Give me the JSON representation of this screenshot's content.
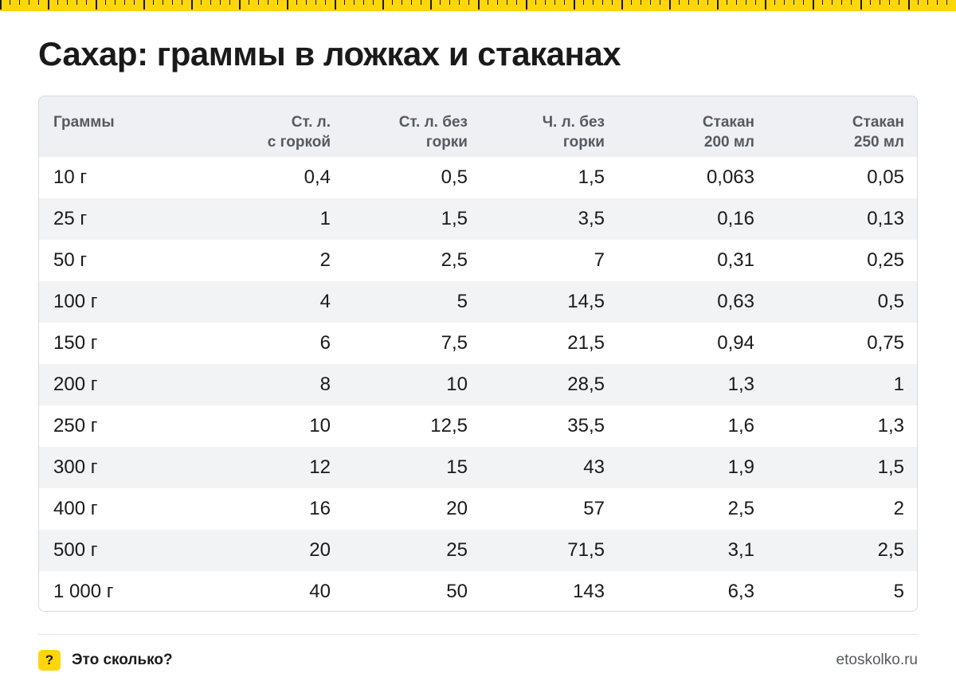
{
  "title": "Сахар: граммы в ложках и стаканах",
  "table": {
    "headers": [
      [
        "Граммы"
      ],
      [
        "Ст. л.",
        "с горкой"
      ],
      [
        "Ст. л. без",
        "горки"
      ],
      [
        "Ч. л. без",
        "горки"
      ],
      [
        "Стакан",
        "200 мл"
      ],
      [
        "Стакан",
        "250 мл"
      ]
    ],
    "rows": [
      [
        "10 г",
        "0,4",
        "0,5",
        "1,5",
        "0,063",
        "0,05"
      ],
      [
        "25 г",
        "1",
        "1,5",
        "3,5",
        "0,16",
        "0,13"
      ],
      [
        "50 г",
        "2",
        "2,5",
        "7",
        "0,31",
        "0,25"
      ],
      [
        "100 г",
        "4",
        "5",
        "14,5",
        "0,63",
        "0,5"
      ],
      [
        "150 г",
        "6",
        "7,5",
        "21,5",
        "0,94",
        "0,75"
      ],
      [
        "200 г",
        "8",
        "10",
        "28,5",
        "1,3",
        "1"
      ],
      [
        "250 г",
        "10",
        "12,5",
        "35,5",
        "1,6",
        "1,3"
      ],
      [
        "300 г",
        "12",
        "15",
        "43",
        "1,9",
        "1,5"
      ],
      [
        "400 г",
        "16",
        "20",
        "57",
        "2,5",
        "2"
      ],
      [
        "500 г",
        "20",
        "25",
        "71,5",
        "3,1",
        "2,5"
      ],
      [
        "1 000 г",
        "40",
        "50",
        "143",
        "6,3",
        "5"
      ]
    ]
  },
  "footer": {
    "logo_symbol": "?",
    "logo_text": "Это сколько?",
    "site": "etoskolko.ru"
  },
  "colors": {
    "accent": "#FFD60A",
    "header_bg": "#eef0f3",
    "stripe_bg": "#f2f3f5"
  }
}
